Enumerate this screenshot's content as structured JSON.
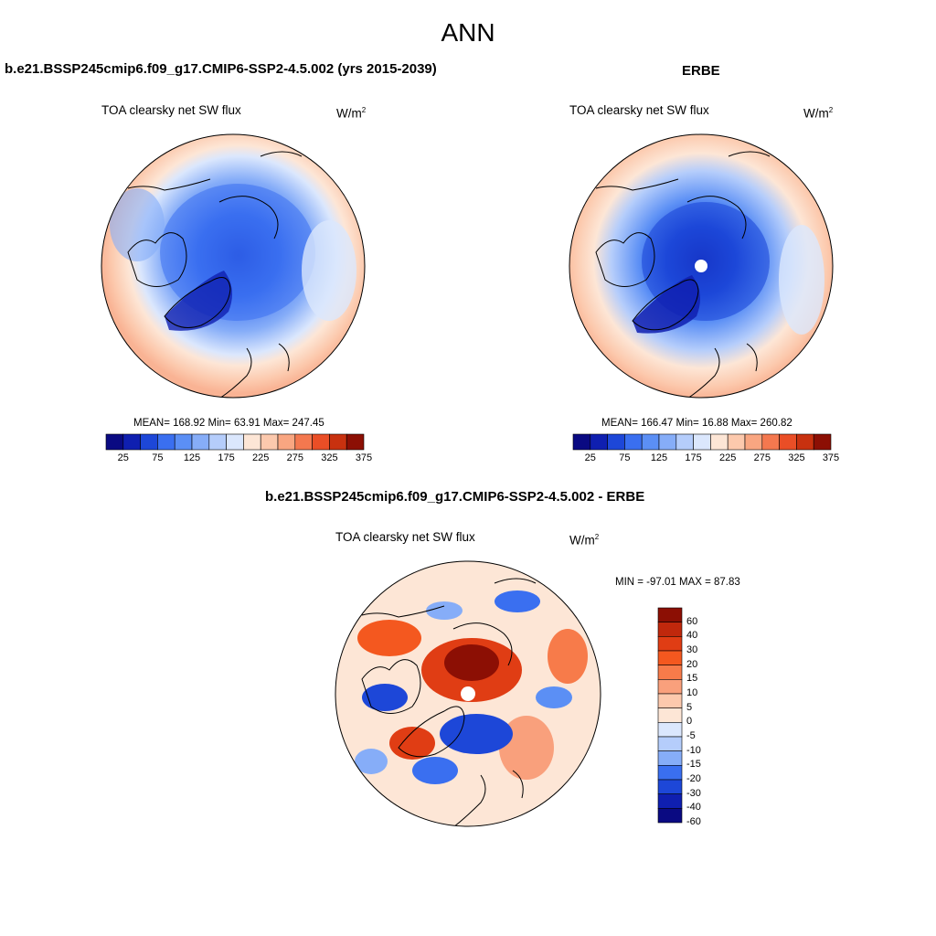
{
  "page": {
    "title": "ANN"
  },
  "panels": [
    {
      "case_title": "b.e21.BSSP245cmip6.f09_g17.CMIP6-SSP2-4.5.002 (yrs 2015-2039)",
      "var_title": "TOA clearsky net SW flux",
      "units_base": "W/m",
      "units_exp": "2",
      "stats": "MEAN= 168.92  Min=  63.91  Max= 247.45"
    },
    {
      "case_title": "ERBE",
      "var_title": "TOA clearsky net SW flux",
      "units_base": "W/m",
      "units_exp": "2",
      "stats": "MEAN= 166.47  Min=  16.88  Max= 260.82"
    },
    {
      "case_title": "b.e21.BSSP245cmip6.f09_g17.CMIP6-SSP2-4.5.002 - ERBE",
      "var_title": "TOA clearsky net SW flux",
      "units_base": "W/m",
      "units_exp": "2",
      "stats": "MIN = -97.01 MAX =  87.83"
    }
  ],
  "colorbars": {
    "abs": {
      "labels": [
        "25",
        "75",
        "125",
        "175",
        "225",
        "275",
        "325",
        "375"
      ],
      "colors": [
        "#0a0a82",
        "#0f1fb0",
        "#1d47d8",
        "#3a6ff0",
        "#5b8ff5",
        "#86adf8",
        "#b5cdfb",
        "#dbe7fd",
        "#fde6d6",
        "#fcc9ad",
        "#f9a681",
        "#f4784f",
        "#ea4e26",
        "#c8310f",
        "#8c0f04"
      ]
    },
    "diff": {
      "labels": [
        "60",
        "40",
        "30",
        "20",
        "15",
        "10",
        "5",
        "0",
        "-5",
        "-10",
        "-15",
        "-20",
        "-30",
        "-40",
        "-60"
      ],
      "colors": [
        "#8c0f04",
        "#c0280c",
        "#e03d14",
        "#f4581f",
        "#f77b4a",
        "#f9a07c",
        "#fcc9ad",
        "#fde6d6",
        "#dbe7fd",
        "#b5cdfb",
        "#86adf8",
        "#3a6ff0",
        "#1d47d8",
        "#0f1fb0",
        "#0a0a82"
      ]
    }
  },
  "chart_data": [
    {
      "type": "heatmap",
      "projection": "north-polar-stereographic",
      "title": "TOA clearsky net SW flux",
      "units": "W/m2",
      "mean": 168.92,
      "min": 63.91,
      "max": 247.45,
      "colorbar_ticks": [
        25,
        75,
        125,
        175,
        225,
        275,
        325,
        375
      ]
    },
    {
      "type": "heatmap",
      "projection": "north-polar-stereographic",
      "title": "TOA clearsky net SW flux",
      "units": "W/m2",
      "mean": 166.47,
      "min": 16.88,
      "max": 260.82,
      "colorbar_ticks": [
        25,
        75,
        125,
        175,
        225,
        275,
        325,
        375
      ]
    },
    {
      "type": "heatmap",
      "projection": "north-polar-stereographic",
      "title": "TOA clearsky net SW flux",
      "units": "W/m2",
      "min": -97.01,
      "max": 87.83,
      "colorbar_ticks": [
        60,
        40,
        30,
        20,
        15,
        10,
        5,
        0,
        -5,
        -10,
        -15,
        -20,
        -30,
        -40,
        -60
      ]
    }
  ]
}
